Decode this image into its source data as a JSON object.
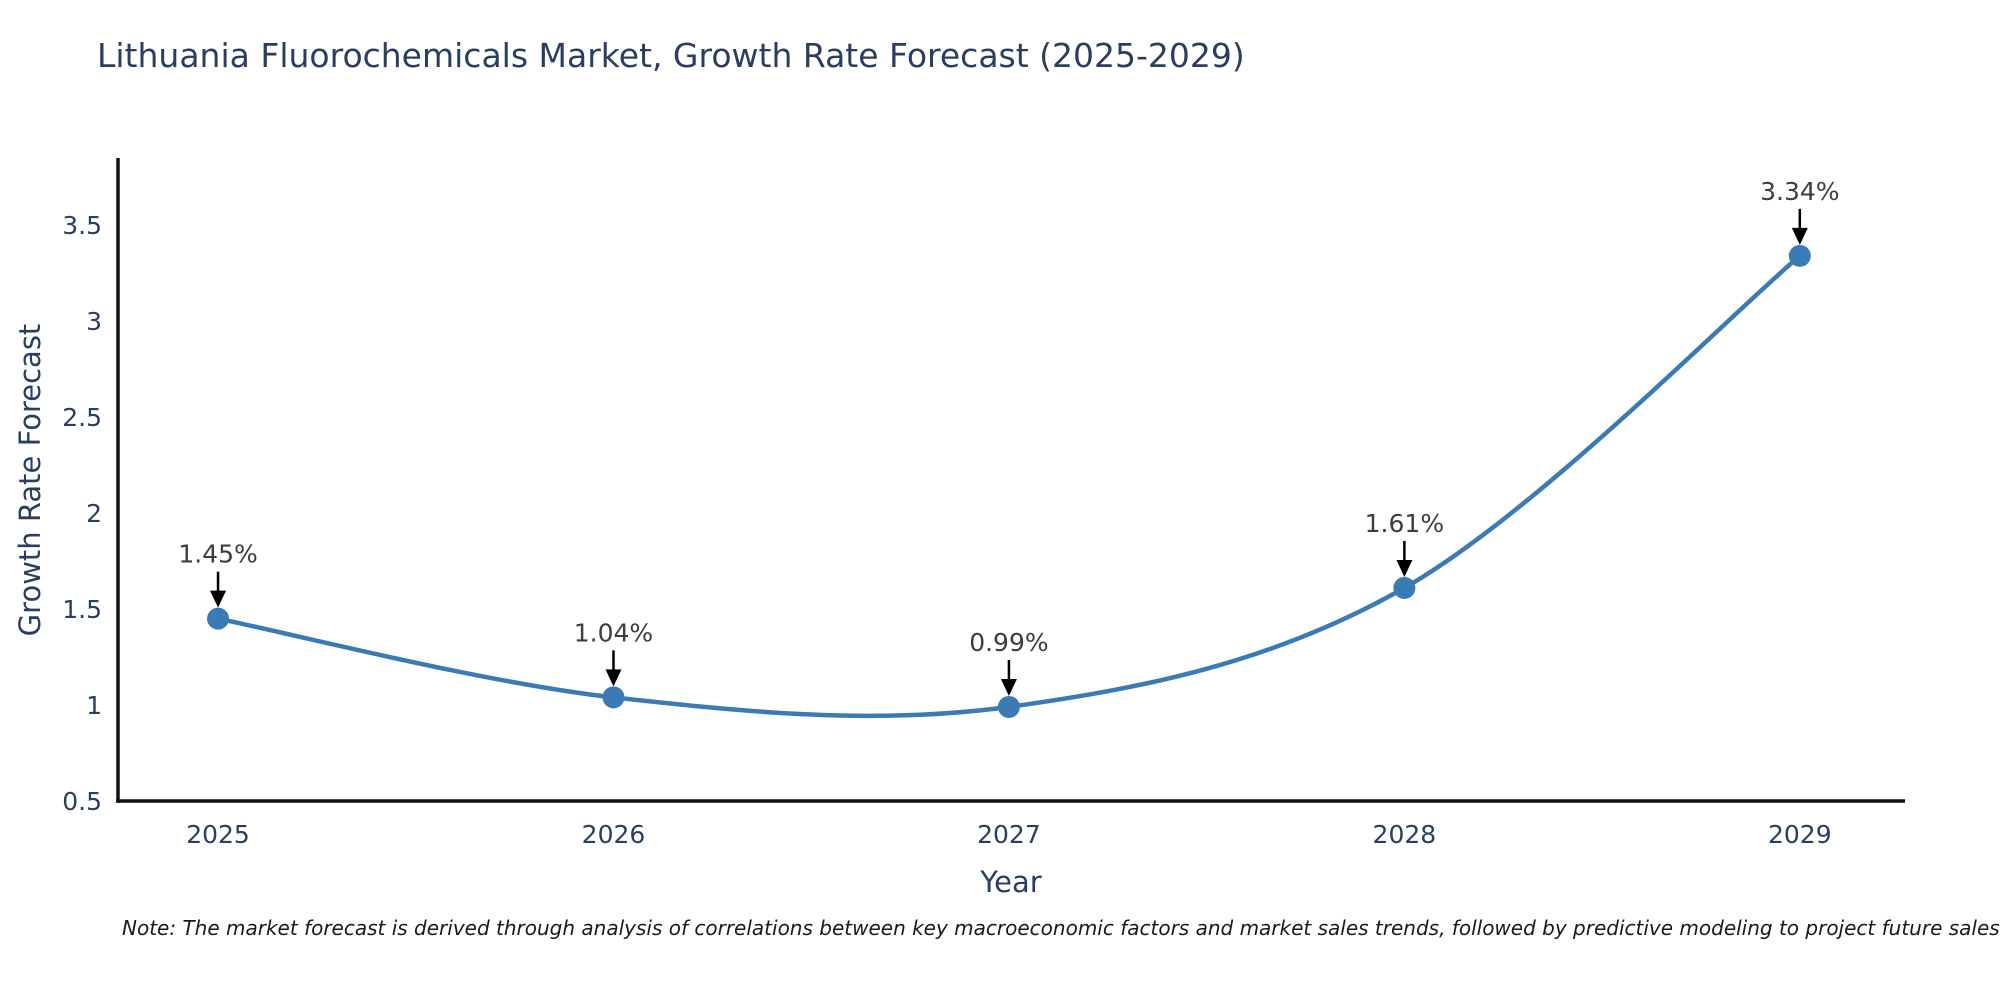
{
  "page": {
    "note": "Note: The market forecast is derived through analysis of correlations between key macroeconomic factors and market sales trends, followed by predictive modeling to project future sales"
  },
  "chart_data": {
    "type": "line",
    "title": "Lithuania Fluorochemicals Market, Growth Rate Forecast (2025-2029)",
    "xlabel": "Year",
    "ylabel": "Growth Rate Forecast",
    "x": [
      2025,
      2026,
      2027,
      2028,
      2029
    ],
    "values": [
      1.45,
      1.04,
      0.99,
      1.61,
      3.34
    ],
    "point_labels": [
      "1.45%",
      "1.04%",
      "0.99%",
      "1.61%",
      "3.34%"
    ],
    "xtick_labels": [
      "2025",
      "2026",
      "2027",
      "2028",
      "2029"
    ],
    "yticks": [
      0.5,
      1,
      1.5,
      2,
      2.5,
      3,
      3.5
    ],
    "ytick_labels": [
      "0.5",
      "1",
      "1.5",
      "2",
      "2.5",
      "3",
      "3.5"
    ],
    "xlim": [
      2024.747,
      2029.266
    ],
    "ylim": [
      0.5,
      3.85
    ],
    "grid": false,
    "legend": "none",
    "line_shape": "spline",
    "marker": "circle",
    "annotation_style": "value label with downward black arrow above each point",
    "colors": {
      "line": "#3a7ab5",
      "marker": "#3a7ab5",
      "axis": "#111111",
      "tick_text": "#2a3f5f",
      "annotation_text": "#3d3d3d",
      "arrow": "#000000",
      "background": "#ffffff"
    }
  }
}
